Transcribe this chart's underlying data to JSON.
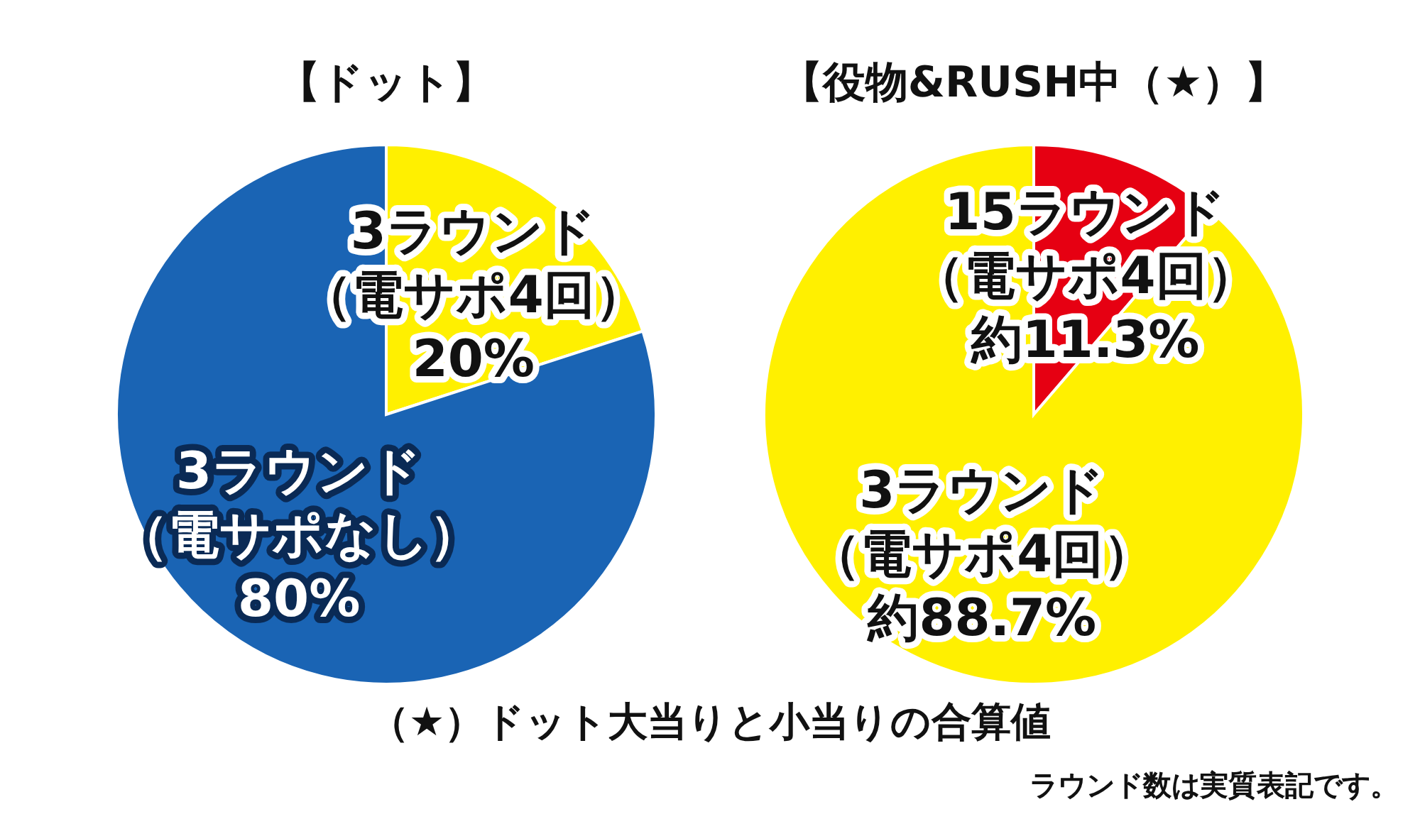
{
  "chart_data": [
    {
      "type": "pie",
      "title": "【ドット】",
      "categories": [
        "3ラウンド（電サポ4回）",
        "3ラウンド（電サポなし）"
      ],
      "values": [
        20,
        80
      ],
      "colors": [
        "#fff000",
        "#1a64b4"
      ],
      "value_labels": [
        "20%",
        "80%"
      ],
      "annotations": [
        "（★）ドット大当りと小当りの合算値",
        "ラウンド数は実質表記です。"
      ]
    },
    {
      "type": "pie",
      "title": "【役物&RUSH中（★）】",
      "categories": [
        "15ラウンド（電サポ4回）",
        "3ラウンド（電サポ4回）"
      ],
      "values": [
        11.3,
        88.7
      ],
      "colors": [
        "#e60012",
        "#fff000"
      ],
      "value_labels": [
        "約11.3%",
        "約88.7%"
      ]
    }
  ]
}
